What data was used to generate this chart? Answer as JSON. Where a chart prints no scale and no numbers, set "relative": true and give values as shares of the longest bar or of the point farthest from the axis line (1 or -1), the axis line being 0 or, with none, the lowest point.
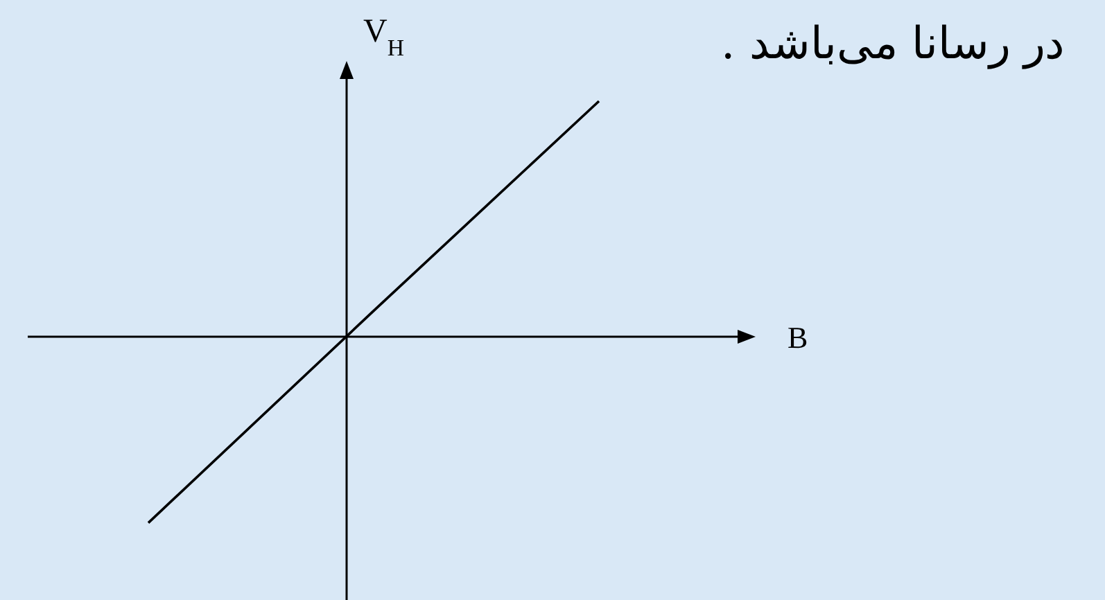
{
  "chart_data": {
    "type": "line",
    "title": "در رسانا می‌باشد .",
    "xlabel": "B",
    "ylabel": "V$_{H}$",
    "relative": true,
    "categories": [
      null,
      null,
      null
    ],
    "series": [
      {
        "color": "#000000",
        "values": [
          -0.79,
          0.11,
          1
        ]
      }
    ]
  }
}
